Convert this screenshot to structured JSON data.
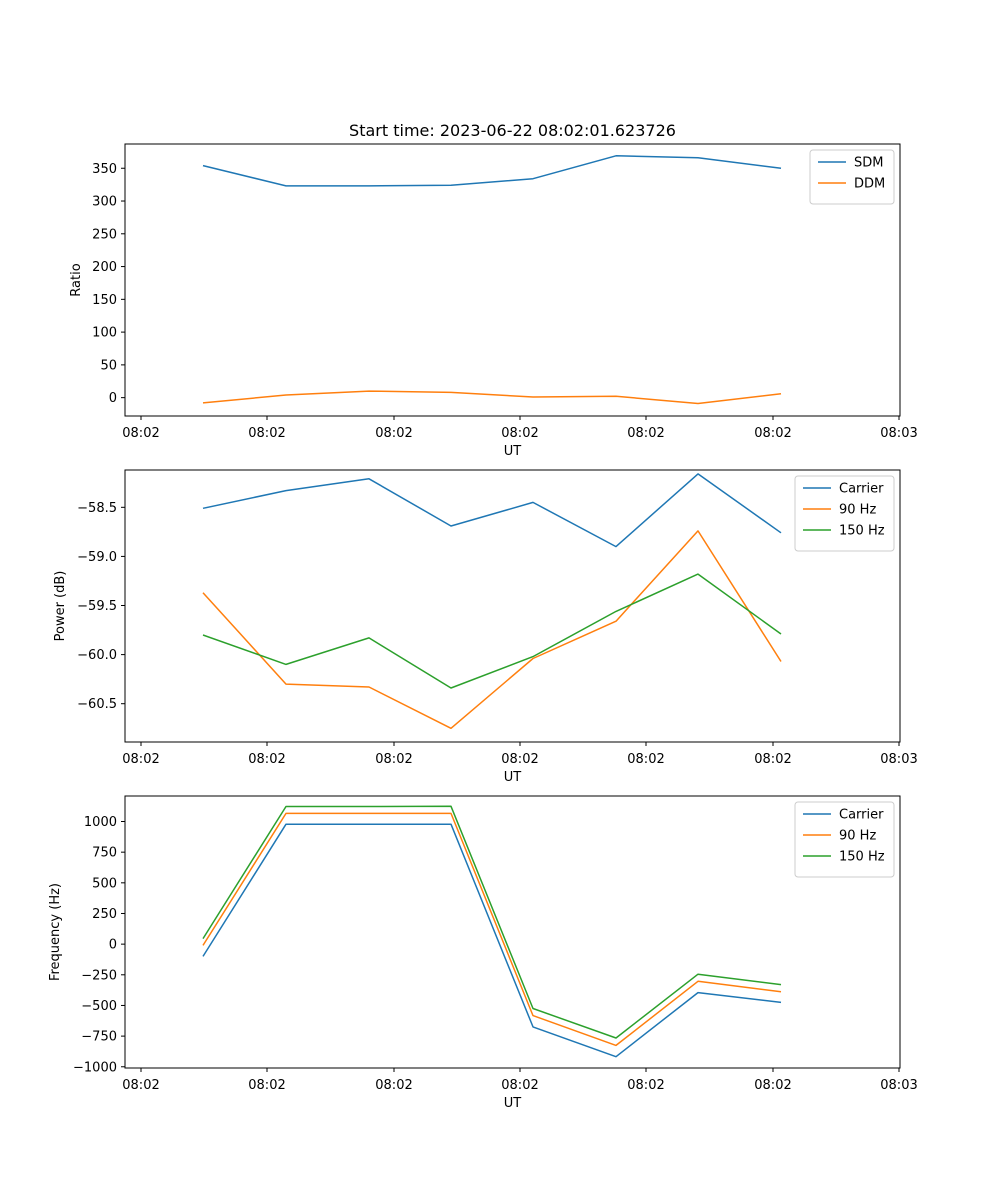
{
  "chart_data": [
    {
      "type": "line",
      "title": "Start time: 2023-06-22 08:02:01.623726",
      "xlabel": "UT",
      "ylabel": "Ratio",
      "x_tick_labels": [
        "08:02",
        "08:02",
        "08:02",
        "08:02",
        "08:02",
        "08:02",
        "08:03"
      ],
      "y_ticks": [
        0,
        50,
        100,
        150,
        200,
        250,
        300,
        350
      ],
      "ylim": [
        -28,
        387
      ],
      "legend_position": "upper right",
      "series": [
        {
          "name": "SDM",
          "color": "#1f77b4",
          "values": [
            354,
            323,
            323,
            324,
            334,
            369,
            366,
            350
          ]
        },
        {
          "name": "DDM",
          "color": "#ff7f0e",
          "values": [
            -8,
            4,
            10,
            8,
            1,
            2,
            -9,
            6
          ]
        }
      ]
    },
    {
      "type": "line",
      "title": "",
      "xlabel": "UT",
      "ylabel": "Power (dB)",
      "x_tick_labels": [
        "08:02",
        "08:02",
        "08:02",
        "08:02",
        "08:02",
        "08:02",
        "08:03"
      ],
      "y_ticks": [
        -60.5,
        -60.0,
        -59.5,
        -59.0,
        -58.5
      ],
      "y_tick_labels": [
        "−60.5",
        "−60.0",
        "−59.5",
        "−59.0",
        "−58.5"
      ],
      "ylim": [
        -60.89,
        -58.12
      ],
      "legend_position": "upper right",
      "series": [
        {
          "name": "Carrier",
          "color": "#1f77b4",
          "values": [
            -58.51,
            -58.33,
            -58.21,
            -58.69,
            -58.45,
            -58.9,
            -58.16,
            -58.76
          ]
        },
        {
          "name": "90 Hz",
          "color": "#ff7f0e",
          "values": [
            -59.37,
            -60.3,
            -60.33,
            -60.75,
            -60.04,
            -59.66,
            -58.74,
            -60.07
          ]
        },
        {
          "name": "150 Hz",
          "color": "#2ca02c",
          "values": [
            -59.8,
            -60.1,
            -59.83,
            -60.34,
            -60.02,
            -59.56,
            -59.18,
            -59.79
          ]
        }
      ]
    },
    {
      "type": "line",
      "title": "",
      "xlabel": "UT",
      "ylabel": "Frequency (Hz)",
      "x_tick_labels": [
        "08:02",
        "08:02",
        "08:02",
        "08:02",
        "08:02",
        "08:02",
        "08:03"
      ],
      "y_ticks": [
        -1000,
        -750,
        -500,
        -250,
        0,
        250,
        500,
        750,
        1000
      ],
      "y_tick_labels": [
        "−1000",
        "−750",
        "−500",
        "−250",
        "0",
        "250",
        "500",
        "750",
        "1000"
      ],
      "ylim": [
        -1010,
        1208
      ],
      "legend_position": "upper right",
      "series": [
        {
          "name": "Carrier",
          "color": "#1f77b4",
          "values": [
            -100,
            978,
            978,
            978,
            -675,
            -918,
            -395,
            -475
          ]
        },
        {
          "name": "90 Hz",
          "color": "#ff7f0e",
          "values": [
            -10,
            1066,
            1066,
            1066,
            -583,
            -826,
            -303,
            -388
          ]
        },
        {
          "name": "150 Hz",
          "color": "#2ca02c",
          "values": [
            45,
            1122,
            1122,
            1124,
            -525,
            -765,
            -245,
            -330
          ]
        }
      ]
    }
  ]
}
